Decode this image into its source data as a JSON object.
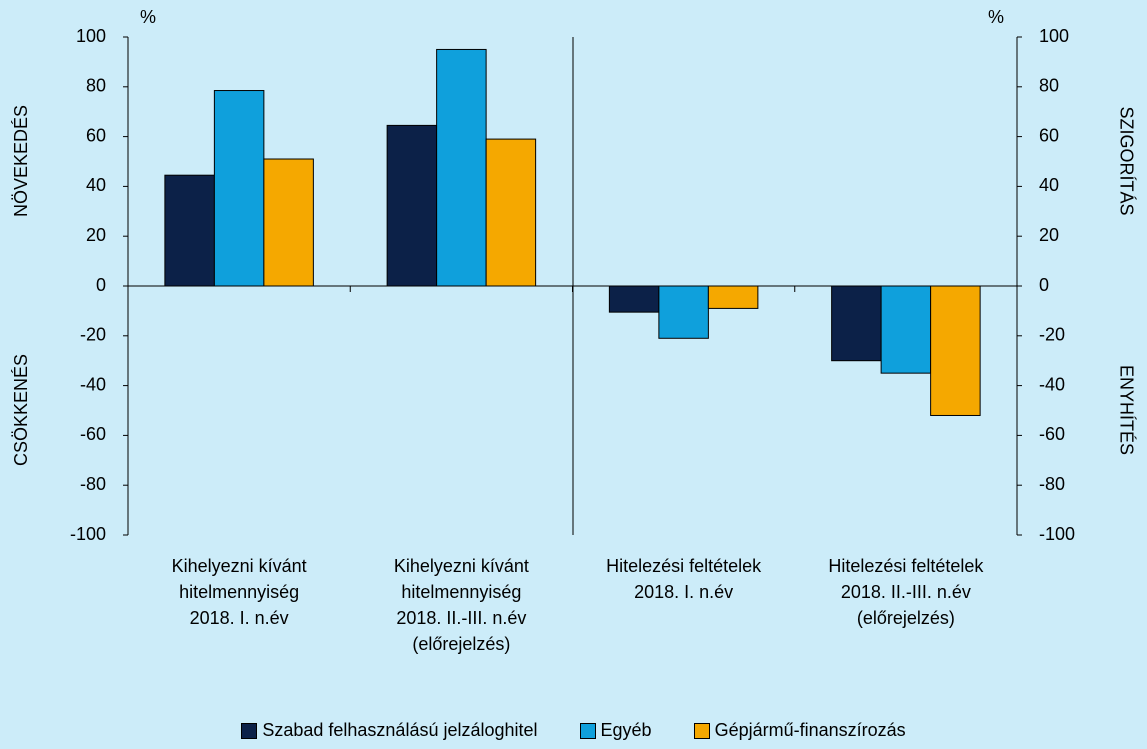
{
  "chart_data": {
    "type": "bar",
    "categories": [
      "Kihelyezni kívánt\nhitelmennyiség\n2018. I. n.év",
      "Kihelyezni kívánt\nhitelmennyiség\n2018. II.-III. n.év\n(előrejelzés)",
      "Hitelezési feltételek\n2018. I. n.év",
      "Hitelezési feltételek\n2018. II.-III. n.év\n(előrejelzés)"
    ],
    "series": [
      {
        "name": "Szabad felhasználású jelzáloghitel",
        "color": "#0c2148",
        "values": [
          44.5,
          64.5,
          -10.5,
          -30
        ]
      },
      {
        "name": "Egyéb",
        "color": "#0fa0dc",
        "values": [
          78.5,
          95,
          -21,
          -35
        ]
      },
      {
        "name": "Gépjármű-finanszírozás",
        "color": "#f5a800",
        "values": [
          51,
          59,
          -9,
          -52
        ]
      }
    ],
    "ylim": [
      -100,
      100
    ],
    "yticks": [
      -100,
      -80,
      -60,
      -40,
      -20,
      0,
      20,
      40,
      60,
      80,
      100
    ],
    "y2lim": [
      -100,
      100
    ],
    "y2ticks": [
      -100,
      -80,
      -60,
      -40,
      -20,
      0,
      20,
      40,
      60,
      80,
      100
    ],
    "y_unit": "%",
    "y2_unit": "%",
    "y_label_top": "NÖVEKEDÉS",
    "y_label_bottom": "CSÖKKENÉS",
    "y2_label_top": "SZIGORÍTÁS",
    "y2_label_bottom": "ENYHÍTÉS",
    "legend": "bottom"
  }
}
